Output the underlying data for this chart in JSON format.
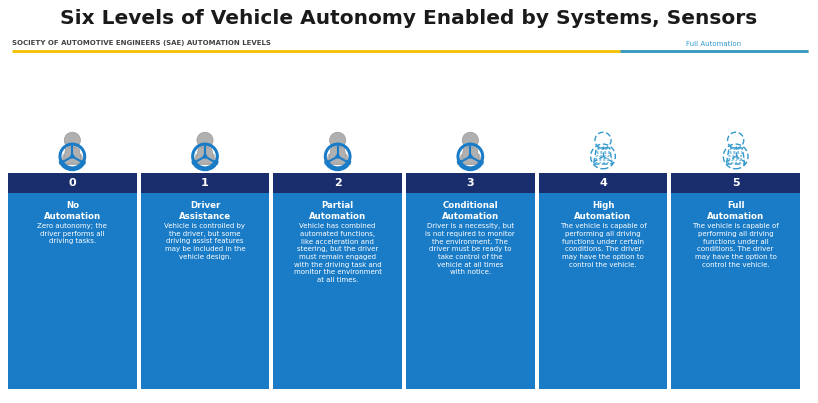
{
  "title": "Six Levels of Vehicle Autonomy Enabled by Systems, Sensors",
  "subtitle": "SOCIETY OF AUTOMOTIVE ENGINEERS (SAE) AUTOMATION LEVELS",
  "full_automation_label": "Full Automation",
  "background_color": "#ffffff",
  "title_color": "#1a1a1a",
  "subtitle_color": "#444444",
  "line_color": "#f5c000",
  "full_auto_line_color": "#3399cc",
  "card_color_header": "#1a2e6e",
  "card_color_body": "#1a7cc7",
  "icon_solid_body": "#aaaaaa",
  "icon_solid_wheel": "#1a7cc7",
  "icon_dashed_color": "#3399cc",
  "levels": [
    {
      "number": "0",
      "title": "No\nAutomation",
      "description": "Zero autonomy; the\ndriver performs all\ndriving tasks.",
      "dashed": false
    },
    {
      "number": "1",
      "title": "Driver\nAssistance",
      "description": "Vehicle is controlled by\nthe driver, but some\ndriving assist features\nmay be included in the\nvehicle design.",
      "dashed": false
    },
    {
      "number": "2",
      "title": "Partial\nAutomation",
      "description": "Vehicle has combined\nautomated functions,\nlike acceleration and\nsteering, but the driver\nmust remain engaged\nwith the driving task and\nmonitor the environment\nat all times.",
      "dashed": false
    },
    {
      "number": "3",
      "title": "Conditional\nAutomation",
      "description": "Driver is a necessity, but\nis not required to monitor\nthe environment. The\ndriver must be ready to\ntake control of the\nvehicle at all times\nwith notice.",
      "dashed": false
    },
    {
      "number": "4",
      "title": "High\nAutomation",
      "description": "The vehicle is capable of\nperforming all driving\nfunctions under certain\nconditions. The driver\nmay have the option to\ncontrol the vehicle.",
      "dashed": true
    },
    {
      "number": "5",
      "title": "Full\nAutomation",
      "description": "The vehicle is capable of\nperforming all driving\nfunctions under all\nconditions. The driver\nmay have the option to\ncontrol the vehicle.",
      "dashed": true
    }
  ]
}
